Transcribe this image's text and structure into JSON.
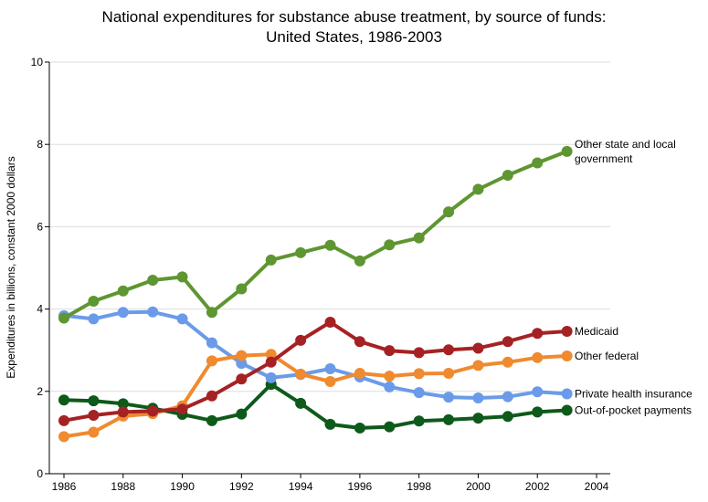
{
  "chart_data": {
    "type": "line",
    "title": "National expenditures for substance abuse treatment, by source of funds:",
    "subtitle": "United States, 1986-2003",
    "xlabel": "",
    "ylabel": "Expenditures in billions, constant 2000 dollars",
    "xlim": [
      1986,
      2004
    ],
    "ylim": [
      0,
      10
    ],
    "xticks": [
      1986,
      1988,
      1990,
      1992,
      1994,
      1996,
      1998,
      2000,
      2002,
      2004
    ],
    "yticks": [
      0,
      2,
      4,
      6,
      8,
      10
    ],
    "grid": true,
    "legend": "right, labels at line ends",
    "x": [
      1986,
      1987,
      1988,
      1989,
      1990,
      1991,
      1992,
      1993,
      1994,
      1995,
      1996,
      1997,
      1998,
      1999,
      2000,
      2001,
      2002,
      2003
    ],
    "series": [
      {
        "name": "Other state and local government",
        "label_lines": [
          "Other state and local",
          "government"
        ],
        "color": "#5e9631",
        "values": [
          3.78,
          4.19,
          4.44,
          4.7,
          4.78,
          3.92,
          4.49,
          5.19,
          5.37,
          5.55,
          5.17,
          5.56,
          5.73,
          6.36,
          6.91,
          7.25,
          7.55,
          7.83
        ]
      },
      {
        "name": "Medicaid",
        "label_lines": [
          "Medicaid"
        ],
        "color": "#a52224",
        "values": [
          1.29,
          1.42,
          1.5,
          1.52,
          1.57,
          1.89,
          2.3,
          2.71,
          3.24,
          3.68,
          3.21,
          2.99,
          2.94,
          3.01,
          3.05,
          3.21,
          3.41,
          3.46
        ]
      },
      {
        "name": "Other federal",
        "label_lines": [
          "Other federal"
        ],
        "color": "#ef8a2f",
        "values": [
          0.9,
          1.01,
          1.4,
          1.46,
          1.65,
          2.74,
          2.87,
          2.9,
          2.42,
          2.24,
          2.44,
          2.37,
          2.43,
          2.44,
          2.63,
          2.71,
          2.82,
          2.86
        ]
      },
      {
        "name": "Private health insurance",
        "label_lines": [
          "Private health insurance"
        ],
        "color": "#6b9be8",
        "values": [
          3.84,
          3.76,
          3.92,
          3.93,
          3.76,
          3.18,
          2.68,
          2.33,
          2.41,
          2.55,
          2.35,
          2.11,
          1.97,
          1.86,
          1.84,
          1.87,
          1.99,
          1.94
        ]
      },
      {
        "name": "Out-of-pocket payments",
        "label_lines": [
          "Out-of-pocket payments"
        ],
        "color": "#0e5a1a",
        "values": [
          1.79,
          1.77,
          1.7,
          1.59,
          1.44,
          1.29,
          1.45,
          2.17,
          1.71,
          1.2,
          1.11,
          1.14,
          1.28,
          1.31,
          1.35,
          1.39,
          1.5,
          1.54
        ]
      }
    ]
  }
}
